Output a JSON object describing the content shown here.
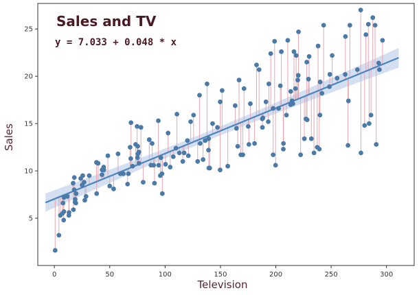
{
  "chart_data": {
    "type": "scatter",
    "title": "Sales and TV",
    "annotation": "y = 7.033 + 0.048 * x",
    "xlabel": "Television",
    "ylabel": "Sales",
    "xlim": [
      -15,
      325
    ],
    "ylim": [
      0,
      27.7
    ],
    "xticks": [
      0,
      50,
      100,
      150,
      200,
      250,
      300
    ],
    "yticks": [
      5,
      10,
      15,
      20,
      25
    ],
    "grid": false,
    "regression": {
      "intercept": 7.033,
      "slope": 0.048,
      "x_range": [
        -8,
        311
      ]
    },
    "colors": {
      "points": "#4a7aa8",
      "line": "#4a84bd",
      "band": "#c5d6ee",
      "residual": "#e8a0a8",
      "text": "#4a1a22"
    },
    "points": [
      [
        0.7,
        1.6
      ],
      [
        4.1,
        3.2
      ],
      [
        5.4,
        5.3
      ],
      [
        7.3,
        5.5
      ],
      [
        7.8,
        6.6
      ],
      [
        8.4,
        4.8
      ],
      [
        8.6,
        5.7
      ],
      [
        8.7,
        7.2
      ],
      [
        11.7,
        7.3
      ],
      [
        13.1,
        5.3
      ],
      [
        13.2,
        5.6
      ],
      [
        16.9,
        8.7
      ],
      [
        17.2,
        5.9
      ],
      [
        17.9,
        8.0
      ],
      [
        18.7,
        6.7
      ],
      [
        18.8,
        7.0
      ],
      [
        19.4,
        6.6
      ],
      [
        19.6,
        7.6
      ],
      [
        18.0,
        9.3
      ],
      [
        23.8,
        9.2
      ],
      [
        25.1,
        8.5
      ],
      [
        25.6,
        9.5
      ],
      [
        26.8,
        8.8
      ],
      [
        27.5,
        6.9
      ],
      [
        28.6,
        7.3
      ],
      [
        31.5,
        9.5
      ],
      [
        38.0,
        10.9
      ],
      [
        38.2,
        7.6
      ],
      [
        39.5,
        10.8
      ],
      [
        43.0,
        9.6
      ],
      [
        43.1,
        10.1
      ],
      [
        44.5,
        10.4
      ],
      [
        44.7,
        10.1
      ],
      [
        48.3,
        11.6
      ],
      [
        50.0,
        8.4
      ],
      [
        53.5,
        8.1
      ],
      [
        57.5,
        11.8
      ],
      [
        59.6,
        9.7
      ],
      [
        62.3,
        9.7
      ],
      [
        66.1,
        8.6
      ],
      [
        66.9,
        9.7
      ],
      [
        68.4,
        12.5
      ],
      [
        69.0,
        11.3
      ],
      [
        69.2,
        15.1
      ],
      [
        70.6,
        10.5
      ],
      [
        73.4,
        12.8
      ],
      [
        74.7,
        14.7
      ],
      [
        75.1,
        11.4
      ],
      [
        75.3,
        12.6
      ],
      [
        75.5,
        11.8
      ],
      [
        76.3,
        12.0
      ],
      [
        76.4,
        10.8
      ],
      [
        78.2,
        14.6
      ],
      [
        80.2,
        8.8
      ],
      [
        85.7,
        13.3
      ],
      [
        87.2,
        10.6
      ],
      [
        88.3,
        12.9
      ],
      [
        89.7,
        10.6
      ],
      [
        90.4,
        8.7
      ],
      [
        93.9,
        15.3
      ],
      [
        94.2,
        10.6
      ],
      [
        95.7,
        9.5
      ],
      [
        96.2,
        11.4
      ],
      [
        97.2,
        9.7
      ],
      [
        97.5,
        7.6
      ],
      [
        100.4,
        10.7
      ],
      [
        102.7,
        14.0
      ],
      [
        104.6,
        10.4
      ],
      [
        107.4,
        11.5
      ],
      [
        109.8,
        12.4
      ],
      [
        110.7,
        16.0
      ],
      [
        112.9,
        11.9
      ],
      [
        116.0,
        11.0
      ],
      [
        117.2,
        11.9
      ],
      [
        120.2,
        13.2
      ],
      [
        121.0,
        11.6
      ],
      [
        123.1,
        15.2
      ],
      [
        125.7,
        15.9
      ],
      [
        129.4,
        11.0
      ],
      [
        131.1,
        18.0
      ],
      [
        131.7,
        12.9
      ],
      [
        134.3,
        11.2
      ],
      [
        136.2,
        13.2
      ],
      [
        137.9,
        19.2
      ],
      [
        139.2,
        12.2
      ],
      [
        139.3,
        13.4
      ],
      [
        139.5,
        10.3
      ],
      [
        140.3,
        10.3
      ],
      [
        142.9,
        15.0
      ],
      [
        147.3,
        14.6
      ],
      [
        149.7,
        10.1
      ],
      [
        149.8,
        17.3
      ],
      [
        151.5,
        18.5
      ],
      [
        156.6,
        10.5
      ],
      [
        163.3,
        16.9
      ],
      [
        164.5,
        14.5
      ],
      [
        165.6,
        12.6
      ],
      [
        166.8,
        19.6
      ],
      [
        168.4,
        11.7
      ],
      [
        170.2,
        11.7
      ],
      [
        171.3,
        18.7
      ],
      [
        175.1,
        14.7
      ],
      [
        175.7,
        12.8
      ],
      [
        177.0,
        17.1
      ],
      [
        180.8,
        12.9
      ],
      [
        182.6,
        21.2
      ],
      [
        184.9,
        20.7
      ],
      [
        187.8,
        15.5
      ],
      [
        187.9,
        14.6
      ],
      [
        188.4,
        15.6
      ],
      [
        191.1,
        17.3
      ],
      [
        193.2,
        15.2
      ],
      [
        193.7,
        19.2
      ],
      [
        195.4,
        22.4
      ],
      [
        197.6,
        11.7
      ],
      [
        197.6,
        16.6
      ],
      [
        198.9,
        23.7
      ],
      [
        199.8,
        10.6
      ],
      [
        202.5,
        16.6
      ],
      [
        204.1,
        19.0
      ],
      [
        205.0,
        22.6
      ],
      [
        206.8,
        12.3
      ],
      [
        206.9,
        12.9
      ],
      [
        209.6,
        15.9
      ],
      [
        210.8,
        23.8
      ],
      [
        213.4,
        17.0
      ],
      [
        213.5,
        18.4
      ],
      [
        214.7,
        17.4
      ],
      [
        215.4,
        17.1
      ],
      [
        216.4,
        22.6
      ],
      [
        217.7,
        18.7
      ],
      [
        218.4,
        22.2
      ],
      [
        219.8,
        19.6
      ],
      [
        220.3,
        20.1
      ],
      [
        220.5,
        24.7
      ],
      [
        222.4,
        11.7
      ],
      [
        225.8,
        13.4
      ],
      [
        227.2,
        15.5
      ],
      [
        228.0,
        21.5
      ],
      [
        228.3,
        15.4
      ],
      [
        229.5,
        19.7
      ],
      [
        230.1,
        22.1
      ],
      [
        232.1,
        13.4
      ],
      [
        234.5,
        11.9
      ],
      [
        237.4,
        12.5
      ],
      [
        238.2,
        23.2
      ],
      [
        239.3,
        12.3
      ],
      [
        239.9,
        15.9
      ],
      [
        240.1,
        19.4
      ],
      [
        241.7,
        18.2
      ],
      [
        243.2,
        25.4
      ],
      [
        248.4,
        18.9
      ],
      [
        248.8,
        20.2
      ],
      [
        250.9,
        22.2
      ],
      [
        255.4,
        19.8
      ],
      [
        262.7,
        20.2
      ],
      [
        262.9,
        24.2
      ],
      [
        265.2,
        12.7
      ],
      [
        265.6,
        17.4
      ],
      [
        266.9,
        25.4
      ],
      [
        273.7,
        20.7
      ],
      [
        276.7,
        27.0
      ],
      [
        276.9,
        11.9
      ],
      [
        280.2,
        14.8
      ],
      [
        281.4,
        24.4
      ],
      [
        283.6,
        25.5
      ],
      [
        284.3,
        15.0
      ],
      [
        286.0,
        15.9
      ],
      [
        287.6,
        26.2
      ],
      [
        289.7,
        25.4
      ],
      [
        290.7,
        12.8
      ],
      [
        292.9,
        21.4
      ],
      [
        293.6,
        20.7
      ],
      [
        296.4,
        23.8
      ]
    ]
  }
}
